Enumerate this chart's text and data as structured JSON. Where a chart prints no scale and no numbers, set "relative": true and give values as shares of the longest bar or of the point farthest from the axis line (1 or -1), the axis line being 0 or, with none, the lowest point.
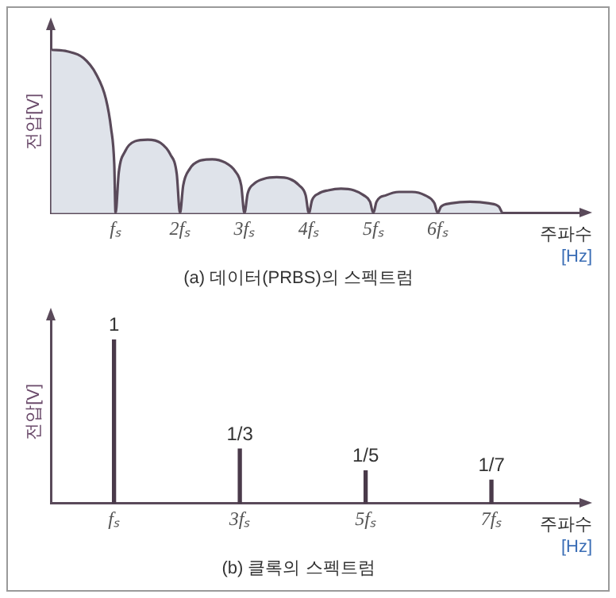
{
  "chart_data": [
    {
      "type": "area",
      "title": "(a) 데이터(PRBS)의 스펙트럼",
      "xlabel": "주파수\n[Hz]",
      "ylabel": "전압[V]",
      "relative": true,
      "marker": "none",
      "grid": false,
      "legend": false,
      "x": [
        0,
        0.25,
        0.5,
        0.7,
        0.85,
        0.93,
        0.98,
        1,
        1.05,
        1.15,
        1.3,
        1.5,
        1.7,
        1.85,
        1.95,
        2,
        2.05,
        2.15,
        2.3,
        2.5,
        2.7,
        2.85,
        2.95,
        3,
        3.05,
        3.15,
        3.3,
        3.5,
        3.7,
        3.85,
        3.95,
        4,
        4.05,
        4.15,
        4.3,
        4.5,
        4.7,
        4.85,
        4.95,
        5,
        5.05,
        5.2,
        5.4,
        5.6,
        5.8,
        5.95,
        6,
        6.05,
        6.2,
        6.5,
        6.8,
        6.95,
        7
      ],
      "series": [
        {
          "color": "#5a4a5a",
          "values": [
            1,
            0.99,
            0.95,
            0.85,
            0.7,
            0.52,
            0.3,
            0,
            0.25,
            0.38,
            0.44,
            0.45,
            0.43,
            0.36,
            0.24,
            0,
            0.17,
            0.27,
            0.32,
            0.33,
            0.31,
            0.26,
            0.17,
            0,
            0.12,
            0.18,
            0.21,
            0.22,
            0.21,
            0.17,
            0.11,
            0,
            0.08,
            0.12,
            0.14,
            0.15,
            0.14,
            0.11,
            0.07,
            0,
            0.07,
            0.11,
            0.13,
            0.13,
            0.11,
            0.06,
            0,
            0.04,
            0.06,
            0.07,
            0.06,
            0.04,
            0
          ]
        }
      ],
      "xlim": [
        0,
        8.2
      ],
      "xticks": [
        {
          "value": 1,
          "label": "fₛ"
        },
        {
          "value": 2,
          "label": "2fₛ"
        },
        {
          "value": 3,
          "label": "3fₛ"
        },
        {
          "value": 4,
          "label": "4fₛ"
        },
        {
          "value": 5,
          "label": "5fₛ"
        },
        {
          "value": 6,
          "label": "6fₛ"
        }
      ]
    },
    {
      "type": "bar",
      "title": "(b) 클록의 스펙트럼",
      "xlabel": "주파수\n[Hz]",
      "ylabel": "전압[V]",
      "ylim": [
        0,
        1.12
      ],
      "tick_labels": "x",
      "grid": false,
      "legend": false,
      "x": [
        1,
        3,
        5,
        7
      ],
      "series": [
        {
          "color": "#4a3a4a",
          "values": [
            1,
            0.333,
            0.2,
            0.143
          ],
          "value_labels": [
            "1",
            "1/3",
            "1/5",
            "1/7"
          ]
        }
      ],
      "xlim": [
        0,
        8.4
      ],
      "xticks": [
        {
          "value": 1,
          "label": "fₛ"
        },
        {
          "value": 3,
          "label": "3fₛ"
        },
        {
          "value": 5,
          "label": "5fₛ"
        },
        {
          "value": 7,
          "label": "7fₛ"
        }
      ]
    }
  ]
}
